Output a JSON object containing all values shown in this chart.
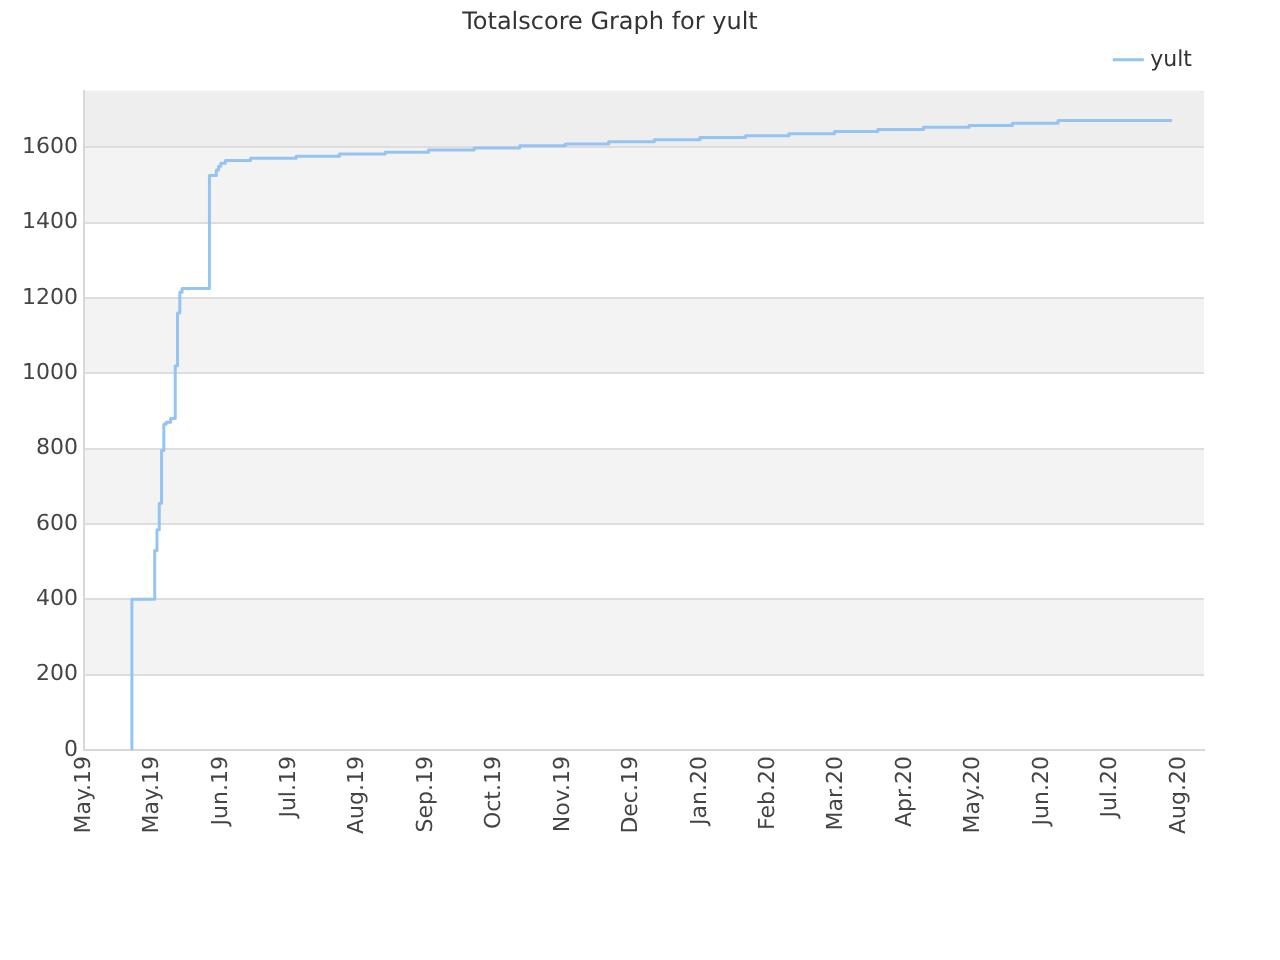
{
  "chart_data": {
    "type": "step",
    "title": "Totalscore Graph for yult",
    "series": [
      {
        "name": "yult",
        "color": "#95c4f3",
        "x": [
          "2019-05-22",
          "2019-05-22",
          "2019-06-01",
          "2019-06-02",
          "2019-06-03",
          "2019-06-04",
          "2019-06-05",
          "2019-06-06",
          "2019-06-08",
          "2019-06-10",
          "2019-06-11",
          "2019-06-12",
          "2019-06-13",
          "2019-06-25",
          "2019-06-28",
          "2019-06-29",
          "2019-06-30",
          "2019-07-02",
          "2019-07-13",
          "2019-08-02",
          "2019-08-21",
          "2019-09-10",
          "2019-09-29",
          "2019-10-19",
          "2019-11-08",
          "2019-11-28",
          "2019-12-17",
          "2020-01-06",
          "2020-01-26",
          "2020-02-15",
          "2020-03-05",
          "2020-03-25",
          "2020-04-13",
          "2020-05-03",
          "2020-05-23",
          "2020-06-11",
          "2020-07-01",
          "2020-07-20",
          "2020-08-09",
          "2020-08-20"
        ],
        "values": [
          0,
          380,
          400,
          530,
          585,
          655,
          795,
          865,
          870,
          880,
          1020,
          1160,
          1215,
          1225,
          1525,
          1540,
          1550,
          1558,
          1565,
          1571,
          1576,
          1582,
          1587,
          1593,
          1598,
          1604,
          1609,
          1615,
          1620,
          1626,
          1631,
          1636,
          1642,
          1647,
          1653,
          1658,
          1664,
          1671,
          1671,
          1671
        ]
      }
    ],
    "xlim": [
      "2019-05-01",
      "2020-09-03"
    ],
    "xticks": [
      {
        "value": "2019-05-01",
        "label": "May.19"
      },
      {
        "value": "2019-05-31",
        "label": "May.19"
      },
      {
        "value": "2019-06-30",
        "label": "Jun.19"
      },
      {
        "value": "2019-07-30",
        "label": "Jul.19"
      },
      {
        "value": "2019-08-29",
        "label": "Aug.19"
      },
      {
        "value": "2019-09-28",
        "label": "Sep.19"
      },
      {
        "value": "2019-10-28",
        "label": "Oct.19"
      },
      {
        "value": "2019-11-27",
        "label": "Nov.19"
      },
      {
        "value": "2019-12-27",
        "label": "Dec.19"
      },
      {
        "value": "2020-01-26",
        "label": "Jan.20"
      },
      {
        "value": "2020-02-25",
        "label": "Feb.20"
      },
      {
        "value": "2020-03-26",
        "label": "Mar.20"
      },
      {
        "value": "2020-04-25",
        "label": "Apr.20"
      },
      {
        "value": "2020-05-25",
        "label": "May.20"
      },
      {
        "value": "2020-06-24",
        "label": "Jun.20"
      },
      {
        "value": "2020-07-24",
        "label": "Jul.20"
      },
      {
        "value": "2020-08-23",
        "label": "Aug.20"
      }
    ],
    "ylim": [
      0,
      1750
    ],
    "yticks": [
      0,
      200,
      400,
      600,
      800,
      1000,
      1200,
      1400,
      1600
    ],
    "bands": [
      {
        "axis": "y",
        "from": 1600,
        "to": 1750,
        "color": "#eeeeee"
      }
    ],
    "grid": "y",
    "legend": "top right",
    "marker": "none",
    "line_style": "solid"
  }
}
